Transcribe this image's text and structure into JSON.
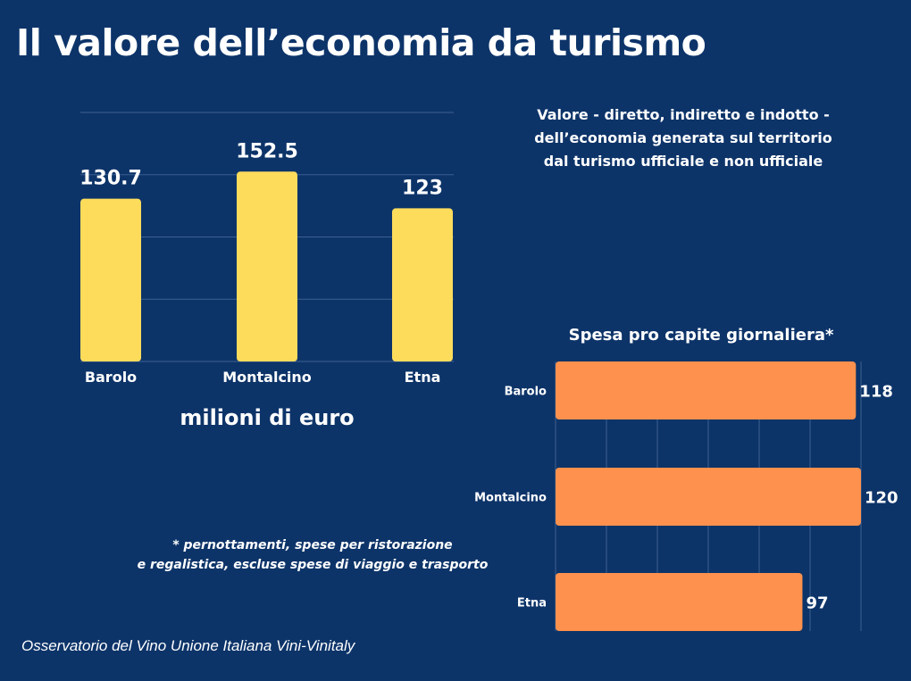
{
  "title": "Il valore dell’economia da turismo",
  "subtitle_lines": [
    "Valore - diretto, indiretto e indotto -",
    "dell’economia generata sul territorio",
    "dal turismo ufficiale e non ufficiale"
  ],
  "unit_label": "milioni di euro",
  "footnote_lines": [
    "*  pernottamenti, spese per ristorazione",
    "e regalistica, escluse spese di viaggio e trasporto"
  ],
  "source": "Osservatorio del Vino Unione Italiana Vini-Vinitaly",
  "colors": {
    "background": "#0d3469",
    "yellow": "#fddc5c",
    "orange": "#fd914d",
    "grid": "#3d5f90"
  },
  "chart_data": [
    {
      "type": "bar",
      "orientation": "vertical",
      "title": "",
      "xlabel": "",
      "ylabel": "milioni di euro",
      "categories": [
        "Barolo",
        "Montalcino",
        "Etna"
      ],
      "values": [
        130.7,
        152.5,
        123
      ],
      "data_labels": [
        "130.7",
        "152.5",
        "123"
      ],
      "ylim": [
        0,
        200
      ],
      "grid_step": 50,
      "grid": true
    },
    {
      "type": "bar",
      "orientation": "horizontal",
      "title": "Spesa pro capite giornaliera*",
      "categories": [
        "Barolo",
        "Montalcino",
        "Etna"
      ],
      "values": [
        118,
        120,
        97
      ],
      "data_labels": [
        "118",
        "120",
        "97"
      ],
      "xlim": [
        0,
        120
      ],
      "grid_step": 20,
      "grid": true
    }
  ]
}
